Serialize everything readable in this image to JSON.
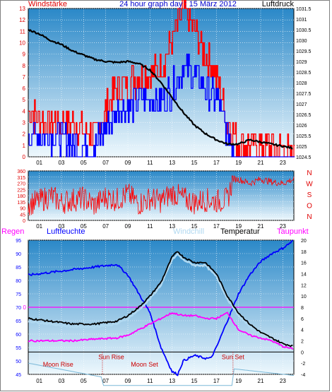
{
  "header": {
    "left": "Windstärke",
    "title": "24 hour graph day : 15 März 2012",
    "right": "Luftdruck"
  },
  "colors": {
    "wind_left": "#e00000",
    "title": "#0000cc",
    "red": "#ff0000",
    "blue": "#0000ff",
    "black": "#000000",
    "magenta": "#ff00ff",
    "windchill": "#b0d8f0",
    "moon_text": "#cc0000",
    "panel_top": "#2a88c8",
    "panel_bottom": "#e8f6fc"
  },
  "chart_data": [
    {
      "type": "bar",
      "title": "24 hour graph day : 15 März 2012",
      "x_labels": [
        "01",
        "03",
        "05",
        "07",
        "09",
        "11",
        "13",
        "15",
        "17",
        "19",
        "21",
        "23"
      ],
      "left_axis": {
        "label": "Windstärke",
        "ticks": [
          "0",
          "1",
          "2",
          "3",
          "4",
          "5",
          "6",
          "7",
          "8",
          "9",
          "10",
          "11",
          "12",
          "13"
        ],
        "ylim": [
          0,
          13
        ]
      },
      "right_axis": {
        "label": "Luftdruck",
        "ticks": [
          "1031.5",
          "1031",
          "1030.5",
          "1030",
          "1029.5",
          "1029",
          "1028.5",
          "1028",
          "1027.5",
          "1027",
          "1026.5",
          "1026",
          "1025.5",
          "1025",
          "1024.5"
        ],
        "ylim": [
          1024.5,
          1031.5
        ]
      },
      "series": [
        {
          "name": "Windstärke",
          "color": "red",
          "x": [
            0,
            2,
            4,
            6,
            8,
            10,
            12,
            13,
            14,
            15,
            16,
            17,
            18,
            19,
            20,
            22,
            24
          ],
          "values": [
            4,
            3,
            3,
            2,
            6,
            7,
            8,
            10,
            13,
            11,
            9,
            7,
            3,
            1,
            1,
            1,
            0
          ]
        },
        {
          "name": "",
          "color": "blue",
          "x": [
            0,
            2,
            4,
            6,
            8,
            10,
            12,
            13,
            14,
            15,
            16,
            17,
            18,
            19,
            20,
            22,
            24
          ],
          "values": [
            2,
            2,
            1,
            1,
            4,
            5,
            5,
            6,
            8,
            7,
            6,
            5,
            2,
            0,
            0,
            0,
            0
          ]
        },
        {
          "name": "Luftdruck",
          "color": "black",
          "x": [
            0,
            1,
            2,
            3,
            4,
            5,
            6,
            7,
            8,
            9,
            10,
            11,
            12,
            13,
            14,
            15,
            16,
            17,
            18,
            19,
            20,
            21,
            22,
            23,
            24
          ],
          "values": [
            1030.5,
            1030.3,
            1030.0,
            1029.8,
            1029.5,
            1029.3,
            1029.1,
            1029.0,
            1028.95,
            1029.0,
            1028.9,
            1028.6,
            1028.0,
            1027.3,
            1026.6,
            1026.0,
            1025.6,
            1025.3,
            1025.1,
            1025.1,
            1025.3,
            1025.2,
            1025.1,
            1025.0,
            1024.9
          ]
        }
      ]
    },
    {
      "type": "line",
      "x_labels": [
        "01",
        "03",
        "05",
        "07",
        "09",
        "11",
        "13",
        "15",
        "17",
        "19",
        "21",
        "23"
      ],
      "left_axis": {
        "ticks": [
          "360",
          "315",
          "270",
          "225",
          "180",
          "135",
          "90",
          "45",
          "0"
        ],
        "ylim": [
          0,
          360
        ]
      },
      "right_labels": [
        "N",
        "W",
        "S",
        "O",
        "N"
      ],
      "series": [
        {
          "name": "",
          "color": "red",
          "x": [
            0,
            1,
            2,
            3,
            4,
            5,
            6,
            7,
            8,
            9,
            10,
            11,
            12,
            13,
            14,
            15,
            16,
            17,
            18,
            18.5,
            19,
            20,
            21,
            22,
            23,
            24
          ],
          "values": [
            120,
            140,
            180,
            130,
            150,
            160,
            110,
            170,
            150,
            190,
            120,
            160,
            140,
            200,
            160,
            130,
            150,
            140,
            150,
            300,
            300,
            270,
            300,
            280,
            270,
            300
          ]
        }
      ]
    },
    {
      "type": "line",
      "x_labels": [
        "01",
        "03",
        "05",
        "07",
        "09",
        "11",
        "13",
        "15",
        "17",
        "19",
        "21",
        "23"
      ],
      "legend": [
        "Regen",
        "Luftfeuchte",
        "Windchill",
        "Temperatur",
        "Taupunkt"
      ],
      "left_axis": {
        "label": "Luftfeuchte",
        "ticks": [
          "95",
          "90",
          "85",
          "80",
          "75",
          "70",
          "65",
          "60",
          "55",
          "50",
          "45"
        ],
        "ylim": [
          45,
          95
        ]
      },
      "rain_axis": {
        "label": "Regen",
        "ticks": [
          "0"
        ]
      },
      "right_axis": {
        "label": "Temperatur",
        "ticks": [
          "20",
          "18",
          "16",
          "14",
          "12",
          "10",
          "8",
          "6",
          "4",
          "2",
          "0",
          "-2",
          "-4"
        ],
        "ylim": [
          -4,
          20
        ]
      },
      "annotations": [
        "Sun Rise",
        "Sun Set",
        "Moon Rise",
        "Moon Set"
      ],
      "series": [
        {
          "name": "Luftfeuchte",
          "color": "blue",
          "x": [
            0,
            2,
            4,
            6,
            8,
            9,
            10,
            11,
            12,
            13,
            13.5,
            14,
            15,
            16,
            16.5,
            17,
            18,
            19,
            20,
            21,
            22,
            23,
            24
          ],
          "values": [
            82,
            83,
            84,
            85,
            86,
            82,
            75,
            68,
            55,
            46,
            45,
            50,
            52,
            51,
            51,
            55,
            65,
            75,
            82,
            87,
            90,
            92,
            95
          ]
        },
        {
          "name": "Temperatur",
          "color": "black",
          "x": [
            0,
            2,
            4,
            6,
            8,
            9,
            10,
            11,
            12,
            13,
            13.5,
            14,
            15,
            16,
            17,
            18,
            19,
            20,
            21,
            22,
            23,
            24
          ],
          "values": [
            6,
            5.5,
            5,
            5,
            5.5,
            6.5,
            8,
            10,
            12.5,
            17,
            18,
            17,
            16,
            16,
            14,
            10,
            7,
            5,
            3.5,
            2.5,
            1.5,
            1
          ]
        },
        {
          "name": "Windchill",
          "color": "windchill",
          "x": [
            0,
            2,
            4,
            6,
            8,
            9,
            10,
            11,
            12,
            13,
            13.5,
            14,
            15,
            16,
            17,
            18,
            19,
            20,
            21,
            22,
            23,
            24
          ],
          "values": [
            5.5,
            5,
            4.5,
            4.5,
            5,
            6,
            7.5,
            9.5,
            12,
            16.5,
            17.5,
            16.5,
            15.5,
            15.5,
            13.5,
            9.5,
            6.5,
            4.5,
            3,
            2,
            1,
            0.5
          ]
        },
        {
          "name": "Taupunkt",
          "color": "magenta",
          "x": [
            0,
            2,
            4,
            6,
            8,
            9,
            10,
            11,
            12,
            13,
            14,
            15,
            16,
            17,
            18,
            19,
            20,
            21,
            22,
            23,
            24
          ],
          "values": [
            2,
            2,
            2,
            2.3,
            2.5,
            3,
            4,
            5,
            6,
            7,
            6.5,
            6.5,
            6,
            6,
            7,
            4,
            3,
            2.5,
            2,
            1,
            0.5
          ]
        }
      ]
    }
  ]
}
